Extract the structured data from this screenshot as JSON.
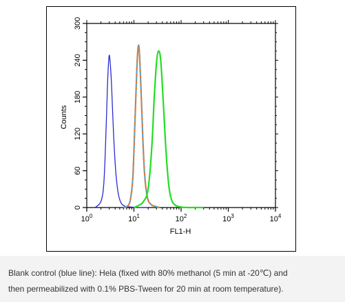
{
  "chart_data": {
    "type": "line",
    "xlabel": "FL1-H",
    "ylabel": "Counts",
    "x_scale": "log",
    "xlim": [
      1,
      10000
    ],
    "ylim": [
      0,
      300
    ],
    "x_ticks": [
      {
        "value": 1,
        "base": "10",
        "exp": "0"
      },
      {
        "value": 10,
        "base": "10",
        "exp": "1"
      },
      {
        "value": 100,
        "base": "10",
        "exp": "2"
      },
      {
        "value": 1000,
        "base": "10",
        "exp": "3"
      },
      {
        "value": 10000,
        "base": "10",
        "exp": "4"
      }
    ],
    "y_ticks": [
      "0",
      "60",
      "120",
      "180",
      "240",
      "300"
    ],
    "grid": false,
    "legend": "none",
    "series": [
      {
        "color": "#2a2ad0",
        "points": [
          [
            1.5,
            0
          ],
          [
            2.0,
            10
          ],
          [
            2.3,
            40
          ],
          [
            2.55,
            120
          ],
          [
            2.75,
            200
          ],
          [
            2.95,
            245
          ],
          [
            3.1,
            240
          ],
          [
            3.35,
            200
          ],
          [
            3.7,
            120
          ],
          [
            4.1,
            60
          ],
          [
            4.6,
            25
          ],
          [
            5.3,
            8
          ],
          [
            6.5,
            2
          ],
          [
            8.5,
            1
          ],
          [
            12,
            0
          ],
          [
            20,
            0
          ]
        ]
      },
      {
        "color": "#f07020",
        "points": [
          [
            6,
            0
          ],
          [
            7.5,
            3
          ],
          [
            8.5,
            15
          ],
          [
            9.5,
            50
          ],
          [
            10.5,
            140
          ],
          [
            11.5,
            225
          ],
          [
            12.3,
            262
          ],
          [
            13.0,
            255
          ],
          [
            14.0,
            200
          ],
          [
            15.5,
            110
          ],
          [
            17,
            50
          ],
          [
            19.5,
            15
          ],
          [
            23,
            5
          ],
          [
            28,
            2
          ],
          [
            35,
            0
          ]
        ]
      },
      {
        "color": "#44b0e0",
        "style": "dashed",
        "points": [
          [
            6,
            0
          ],
          [
            7.5,
            3
          ],
          [
            8.5,
            15
          ],
          [
            9.5,
            50
          ],
          [
            10.5,
            140
          ],
          [
            11.5,
            225
          ],
          [
            12.3,
            262
          ],
          [
            13.0,
            255
          ],
          [
            14.0,
            200
          ],
          [
            15.5,
            110
          ],
          [
            17,
            50
          ],
          [
            19.5,
            15
          ],
          [
            23,
            5
          ],
          [
            28,
            2
          ],
          [
            35,
            0
          ]
        ]
      },
      {
        "color": "#22dd22",
        "points": [
          [
            10,
            0
          ],
          [
            13,
            4
          ],
          [
            16,
            10
          ],
          [
            20,
            30
          ],
          [
            24,
            100
          ],
          [
            27,
            180
          ],
          [
            30,
            235
          ],
          [
            33,
            255
          ],
          [
            37,
            240
          ],
          [
            42,
            170
          ],
          [
            48,
            90
          ],
          [
            55,
            35
          ],
          [
            63,
            12
          ],
          [
            75,
            4
          ],
          [
            95,
            1
          ],
          [
            140,
            0
          ],
          [
            300,
            0
          ]
        ]
      }
    ]
  },
  "caption": {
    "line1": "Blank control (blue line): Hela (fixed with 80% methanol (5 min at -20℃) and",
    "line2": "then permeabilized with 0.1% PBS-Tween for 20 min at room temperature)."
  }
}
